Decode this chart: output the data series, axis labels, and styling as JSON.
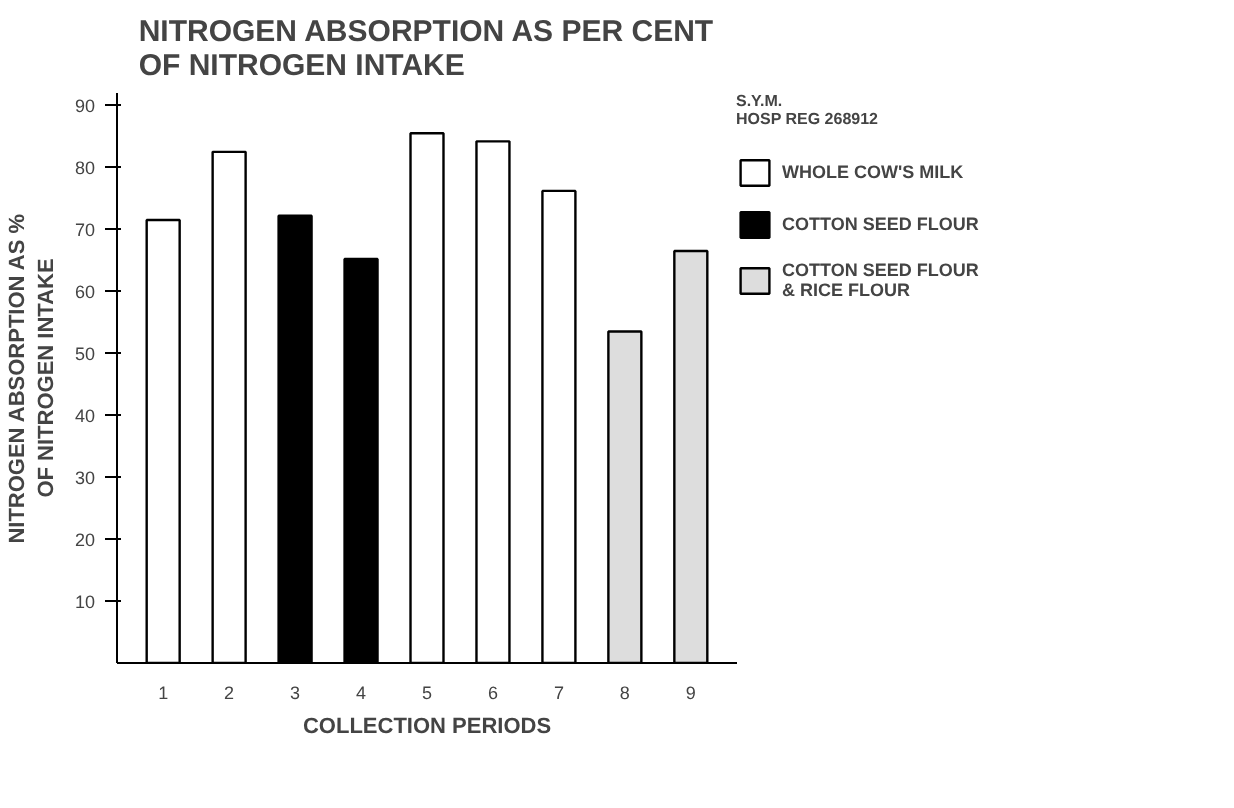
{
  "chart_data": {
    "type": "bar",
    "title": "NITROGEN ABSORPTION AS PER CENT\nOF NITROGEN INTAKE",
    "xlabel": "COLLECTION PERIODS",
    "ylabel": "NITROGEN ABSORPTION AS %\nOF NITROGEN INTAKE",
    "categories": [
      "1",
      "2",
      "3",
      "4",
      "5",
      "6",
      "7",
      "8",
      "9"
    ],
    "series": [
      {
        "name": "WHOLE COW'S MILK",
        "color": "#ffffff",
        "values": [
          71.5,
          82.5,
          null,
          null,
          85.5,
          84.2,
          76.2,
          null,
          null
        ]
      },
      {
        "name": "COTTON SEED FLOUR",
        "color": "#000000",
        "values": [
          null,
          null,
          72.2,
          65.2,
          null,
          null,
          null,
          null,
          null
        ]
      },
      {
        "name": "COTTON SEED FLOUR\n& RICE FLOUR",
        "color": "#dddddd",
        "values": [
          null,
          null,
          null,
          null,
          null,
          null,
          null,
          53.5,
          66.5
        ]
      }
    ],
    "ylim": [
      0,
      92
    ],
    "yticks": [
      10,
      20,
      30,
      40,
      50,
      60,
      70,
      80,
      90
    ],
    "annotations": [
      "S.Y.M.\nHOSP REG 268912"
    ],
    "legend": "right"
  }
}
